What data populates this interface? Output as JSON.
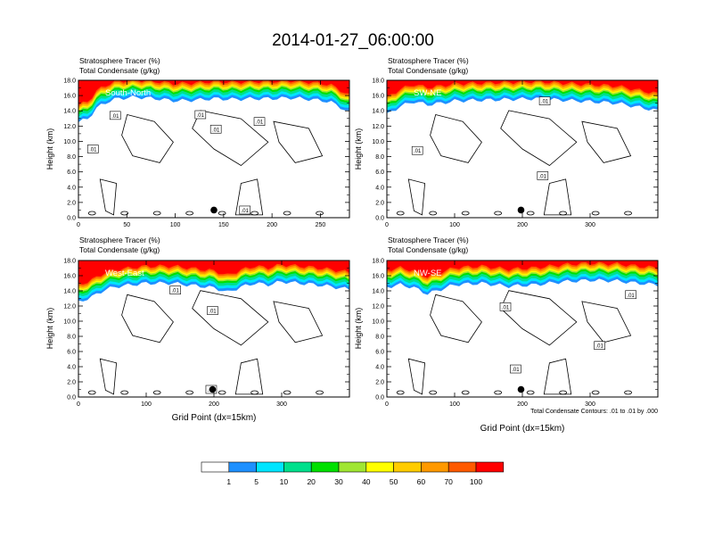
{
  "figure": {
    "title": "2014-01-27_06:00:00",
    "panel_title_line1": "Stratosphere Tracer   (%)",
    "panel_title_line2": "Total Condensate   (g/kg)",
    "ylabel": "Height (km)",
    "xlabel": "Grid Point (dx=15km)",
    "contour_note": "Total Condensate Contours: .01 to .01 by .000",
    "contour_label": ".01"
  },
  "colorbar": {
    "labels": [
      "1",
      "5",
      "10",
      "20",
      "30",
      "40",
      "50",
      "60",
      "70",
      "100"
    ],
    "colors": [
      "#ffffff",
      "#1e90ff",
      "#00e5ff",
      "#00e08c",
      "#00e000",
      "#a0e632",
      "#ffff00",
      "#ffcc00",
      "#ff9900",
      "#ff5a00",
      "#ff0000"
    ]
  },
  "chart_data": [
    {
      "type": "heatmap",
      "panel_label": "South-North",
      "x_ticks": [
        "0",
        "50",
        "100",
        "150",
        "200",
        "250"
      ],
      "y_ticks": [
        "0.0",
        "2.0",
        "4.0",
        "6.0",
        "8.0",
        "10.0",
        "12.0",
        "14.0",
        "16.0",
        "18.0"
      ],
      "xlim": [
        0,
        280
      ],
      "ylim": [
        0,
        18
      ],
      "dot": {
        "x": 140,
        "y": 1.0
      },
      "tracer_base_km": {
        "x": [
          0,
          10,
          20,
          30,
          40,
          60,
          80,
          100,
          120,
          140,
          160,
          180,
          200,
          220,
          240,
          260,
          270,
          280
        ],
        "y": [
          12.5,
          13.0,
          14.5,
          15.2,
          15.6,
          15.8,
          15.6,
          15.3,
          15.4,
          15.6,
          15.5,
          15.6,
          15.6,
          15.7,
          15.5,
          15.2,
          14.5,
          13.8
        ]
      },
      "contour_labels": [
        {
          "x": 38,
          "y": 13.4
        },
        {
          "x": 15,
          "y": 9.0
        },
        {
          "x": 126,
          "y": 13.5
        },
        {
          "x": 142,
          "y": 11.6
        },
        {
          "x": 187,
          "y": 12.6
        },
        {
          "x": 172,
          "y": 1.0
        }
      ]
    },
    {
      "type": "heatmap",
      "panel_label": "SW-NE",
      "x_ticks": [
        "0",
        "100",
        "200",
        "300"
      ],
      "y_ticks": [
        "0.0",
        "2.0",
        "4.0",
        "6.0",
        "8.0",
        "10.0",
        "12.0",
        "14.0",
        "16.0",
        "18.0"
      ],
      "xlim": [
        0,
        400
      ],
      "ylim": [
        0,
        18
      ],
      "dot": {
        "x": 198,
        "y": 1.0
      },
      "tracer_base_km": {
        "x": [
          0,
          20,
          40,
          60,
          80,
          100,
          140,
          180,
          220,
          260,
          300,
          340,
          370,
          400
        ],
        "y": [
          13.5,
          14.6,
          15.2,
          14.8,
          15.0,
          15.3,
          15.4,
          15.5,
          15.6,
          15.4,
          15.2,
          15.0,
          14.5,
          14.0
        ]
      },
      "contour_labels": [
        {
          "x": 45,
          "y": 8.8
        },
        {
          "x": 233,
          "y": 15.3
        },
        {
          "x": 230,
          "y": 5.5
        }
      ]
    },
    {
      "type": "heatmap",
      "panel_label": "West-East",
      "x_ticks": [
        "0",
        "100",
        "200",
        "300"
      ],
      "y_ticks": [
        "0.0",
        "2.0",
        "4.0",
        "6.0",
        "8.0",
        "10.0",
        "12.0",
        "14.0",
        "16.0",
        "18.0"
      ],
      "xlim": [
        0,
        400
      ],
      "ylim": [
        0,
        18
      ],
      "dot": {
        "x": 198,
        "y": 1.0
      },
      "tracer_base_km": {
        "x": [
          0,
          20,
          40,
          60,
          80,
          100,
          140,
          180,
          200,
          220,
          240,
          260,
          280,
          300,
          340,
          370,
          400
        ],
        "y": [
          12.5,
          13.2,
          14.2,
          14.6,
          14.8,
          15.0,
          15.0,
          14.6,
          14.4,
          13.8,
          14.5,
          15.0,
          14.8,
          15.2,
          14.9,
          14.6,
          14.2
        ]
      },
      "contour_labels": [
        {
          "x": 143,
          "y": 14.1
        },
        {
          "x": 198,
          "y": 11.4
        },
        {
          "x": 196,
          "y": 1.0
        }
      ]
    },
    {
      "type": "heatmap",
      "panel_label": "NW-SE",
      "x_ticks": [
        "0",
        "100",
        "200",
        "300"
      ],
      "y_ticks": [
        "0.0",
        "2.0",
        "4.0",
        "6.0",
        "8.0",
        "10.0",
        "12.0",
        "14.0",
        "16.0",
        "18.0"
      ],
      "xlim": [
        0,
        400
      ],
      "ylim": [
        0,
        18
      ],
      "dot": {
        "x": 198,
        "y": 1.0
      },
      "tracer_base_km": {
        "x": [
          0,
          20,
          40,
          60,
          80,
          100,
          140,
          180,
          220,
          260,
          300,
          340,
          370,
          400
        ],
        "y": [
          14.5,
          14.8,
          14.4,
          13.6,
          14.2,
          14.8,
          15.0,
          14.6,
          14.8,
          15.2,
          15.4,
          15.3,
          15.0,
          14.8
        ]
      },
      "contour_labels": [
        {
          "x": 175,
          "y": 11.9
        },
        {
          "x": 360,
          "y": 13.5
        },
        {
          "x": 314,
          "y": 6.8
        },
        {
          "x": 190,
          "y": 3.7
        }
      ]
    }
  ]
}
